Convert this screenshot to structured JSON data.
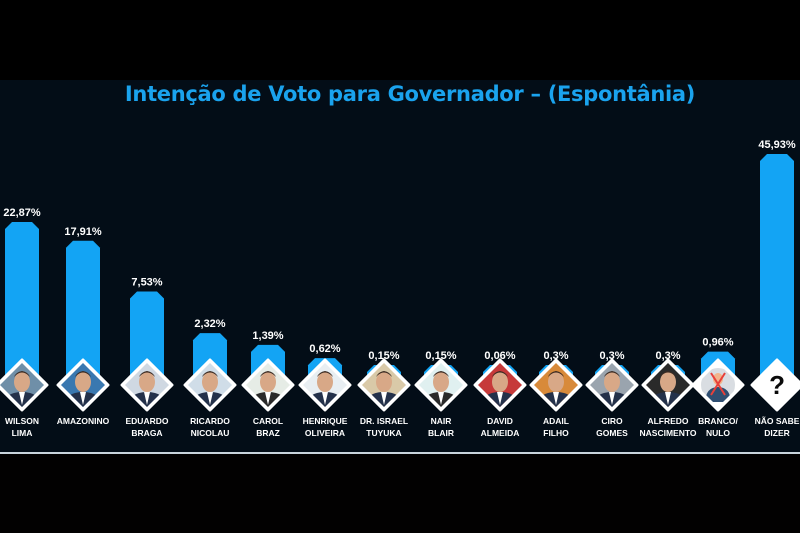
{
  "title": "Intenção de Voto para Governador – (Espontânia)",
  "colors": {
    "background": "#030d17",
    "bar": "#13a4f4",
    "title": "#1aa3ee",
    "text": "#ffffff",
    "diamond_border": "#ffffff"
  },
  "chart_data": {
    "type": "bar",
    "title": "Intenção de Voto para Governador – (Espontânia)",
    "xlabel": "",
    "ylabel": "",
    "grid": false,
    "legend": "none",
    "categories": [
      {
        "line1": "WILSON",
        "line2": "LIMA"
      },
      {
        "line1": "AMAZONINO",
        "line2": ""
      },
      {
        "line1": "EDUARDO",
        "line2": "BRAGA"
      },
      {
        "line1": "RICARDO",
        "line2": "NICOLAU"
      },
      {
        "line1": "CAROL",
        "line2": "BRAZ"
      },
      {
        "line1": "HENRIQUE",
        "line2": "OLIVEIRA"
      },
      {
        "line1": "DR. ISRAEL",
        "line2": "TUYUKA"
      },
      {
        "line1": "NAIR",
        "line2": "BLAIR"
      },
      {
        "line1": "DAVID",
        "line2": "ALMEIDA"
      },
      {
        "line1": "ADAIL",
        "line2": "FILHO"
      },
      {
        "line1": "CIRO",
        "line2": "GOMES"
      },
      {
        "line1": "ALFREDO",
        "line2": "NASCIMENTO"
      },
      {
        "line1": "BRANCO/",
        "line2": "NULO"
      },
      {
        "line1": "NÃO SABE",
        "line2": "DIZER"
      }
    ],
    "values": [
      22.87,
      17.91,
      7.53,
      2.32,
      1.39,
      0.62,
      0.15,
      0.15,
      0.06,
      0.3,
      0.3,
      0.3,
      0.96,
      45.93
    ],
    "value_labels": [
      "22,87%",
      "17,91%",
      "7,53%",
      "2,32%",
      "1,39%",
      "0,62%",
      "0,15%",
      "0,15%",
      "0,06%",
      "0,3%",
      "0,3%",
      "0,3%",
      "0,96%",
      "45,93%"
    ],
    "unit": "%",
    "icons": [
      "portrait",
      "portrait",
      "portrait",
      "portrait",
      "portrait",
      "portrait",
      "portrait",
      "portrait",
      "portrait",
      "portrait",
      "portrait",
      "portrait",
      "crossed-out-person-icon",
      "question-mark-icon"
    ],
    "ylim": [
      0,
      50
    ]
  }
}
